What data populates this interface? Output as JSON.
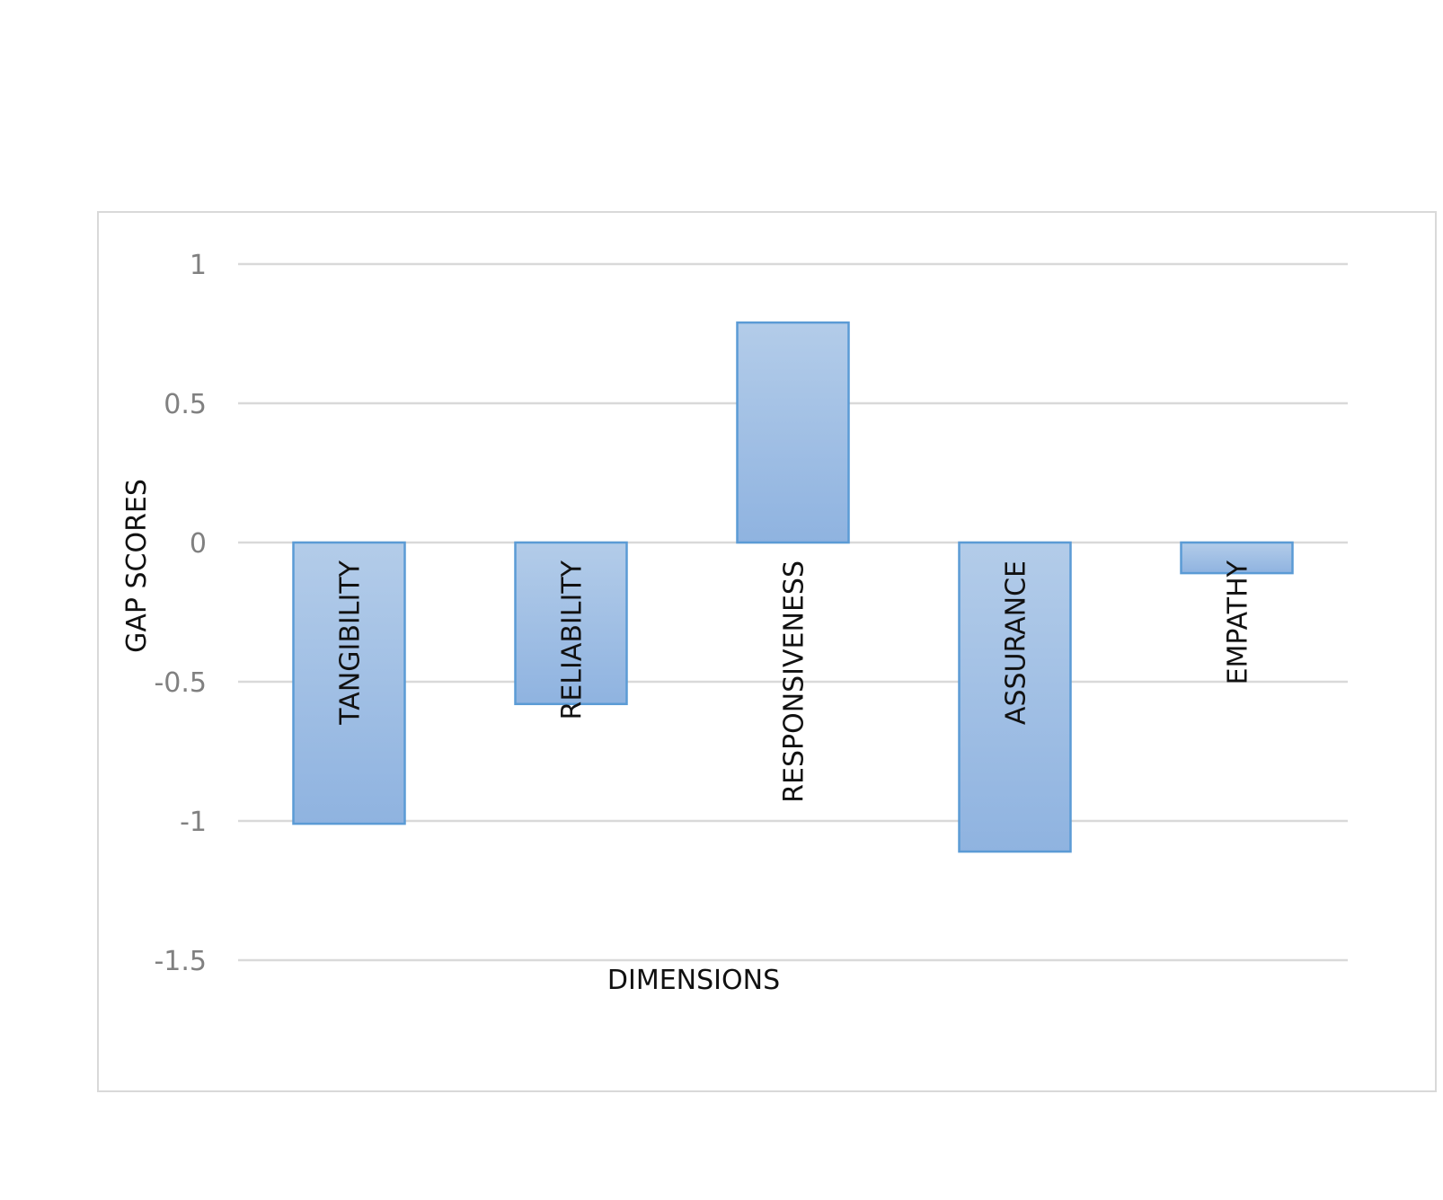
{
  "chart_data": {
    "type": "bar",
    "title": "",
    "xlabel": "DIMENSIONS",
    "ylabel": "GAP SCORES",
    "categories": [
      "TANGIBILITY",
      "RELIABILITY",
      "RESPONSIVENESS",
      "ASSURANCE",
      "EMPATHY"
    ],
    "values": [
      -1.01,
      -0.58,
      0.79,
      -1.11,
      -0.11
    ],
    "ylim": [
      -1.5,
      1
    ],
    "yticks": [
      1,
      0.5,
      0,
      -0.5,
      -1,
      -1.5
    ],
    "ytick_labels": [
      "1",
      "0.5",
      "0",
      "-0.5",
      "-1",
      "-1.5"
    ],
    "grid": true,
    "legend": "none",
    "colors": {
      "bar_fill_top": "#b3cce9",
      "bar_fill_bottom": "#8fb3e0",
      "bar_stroke": "#5b9bd5",
      "gridline": "#d9d9d9",
      "frame": "#d9d9d9"
    }
  }
}
